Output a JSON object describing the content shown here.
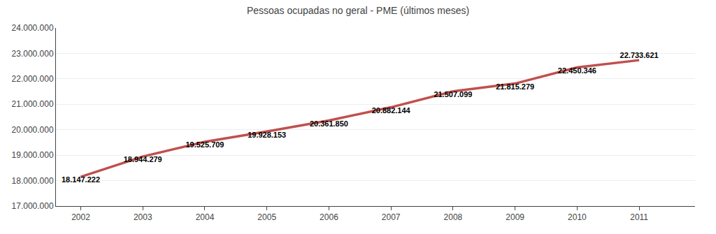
{
  "chart_data": {
    "type": "line",
    "title": "Pessoas ocupadas no geral - PME (últimos meses)",
    "x": [
      2002,
      2003,
      2004,
      2005,
      2006,
      2007,
      2008,
      2009,
      2010,
      2011
    ],
    "values": [
      18147222,
      18944279,
      19525709,
      19928153,
      20361850,
      20882144,
      21507099,
      21815279,
      22450346,
      22733621
    ],
    "value_labels": [
      "18.147.222",
      "18.944.279",
      "19.525.709",
      "19.928.153",
      "20.361.850",
      "20.882.144",
      "21.507.099",
      "21.815.279",
      "22.450.346",
      "22.733.621"
    ],
    "data_labels": true,
    "color": "#c0504d",
    "xlim": [
      2001.6,
      2011.9
    ],
    "xticks": [
      2002,
      2003,
      2004,
      2005,
      2006,
      2007,
      2008,
      2009,
      2010,
      2011
    ],
    "ylim": [
      17000000,
      24000000
    ],
    "yticks": [
      {
        "value": 17000000,
        "label": "17.000.000"
      },
      {
        "value": 18000000,
        "label": "18.000.000"
      },
      {
        "value": 19000000,
        "label": "19.000.000"
      },
      {
        "value": 20000000,
        "label": "20.000.000"
      },
      {
        "value": 21000000,
        "label": "21.000.000"
      },
      {
        "value": 22000000,
        "label": "22.000.000"
      },
      {
        "value": 23000000,
        "label": "23.000.000"
      },
      {
        "value": 24000000,
        "label": "24.000.000"
      }
    ],
    "grid": true
  }
}
